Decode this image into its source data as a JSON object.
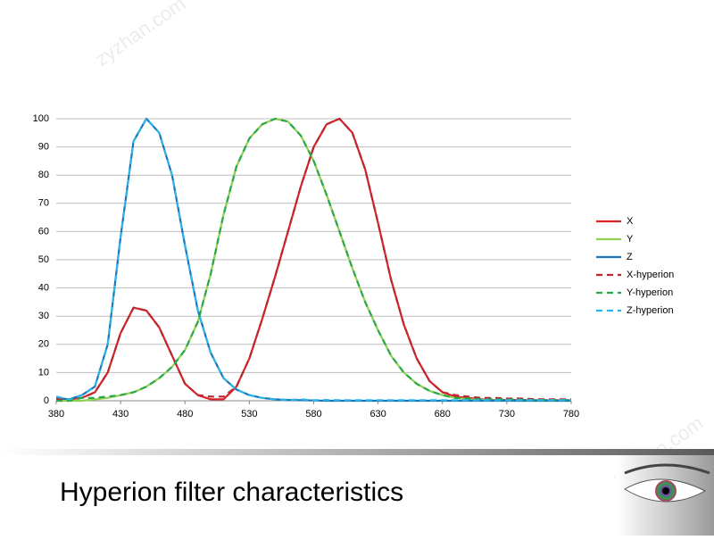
{
  "chart_data": {
    "type": "line",
    "slide_title": "Hyperion filter characteristics",
    "watermarks": [
      "zyzhan.com",
      "zyzhan.com"
    ],
    "x": [
      380,
      390,
      400,
      410,
      420,
      430,
      440,
      450,
      460,
      470,
      480,
      490,
      500,
      510,
      520,
      530,
      540,
      550,
      560,
      570,
      580,
      590,
      600,
      610,
      620,
      630,
      640,
      650,
      660,
      670,
      680,
      690,
      700,
      710,
      720,
      730,
      740,
      750,
      760,
      770,
      780
    ],
    "xlim": [
      380,
      780
    ],
    "xticks": [
      380,
      430,
      480,
      530,
      580,
      630,
      680,
      730,
      780
    ],
    "ylim": [
      0,
      100
    ],
    "yticks": [
      0,
      10,
      20,
      30,
      40,
      50,
      60,
      70,
      80,
      90,
      100
    ],
    "grid": true,
    "legend": "right",
    "series": [
      {
        "name": "X",
        "color": "#d7242b",
        "dash": false,
        "values": [
          0.5,
          0.5,
          1,
          3,
          10,
          24,
          33,
          32,
          26,
          16,
          6,
          2,
          0.5,
          0.5,
          5,
          15,
          29,
          44,
          60,
          76,
          90,
          98,
          100,
          95,
          82,
          63,
          43,
          27,
          15,
          7,
          3,
          1.5,
          1,
          0.5,
          0.3,
          0.3,
          0.3,
          0.2,
          0.2,
          0.2,
          0.2
        ]
      },
      {
        "name": "Y",
        "color": "#8fd14f",
        "dash": false,
        "values": [
          0,
          0,
          0,
          0.5,
          1,
          2,
          3,
          5,
          8,
          12,
          18,
          28,
          45,
          66,
          83,
          93,
          98,
          100,
          99,
          94,
          85,
          73,
          60,
          47,
          35,
          25,
          16,
          10,
          6,
          3.5,
          2,
          1,
          0.5,
          0.3,
          0.2,
          0.1,
          0,
          0,
          0,
          0,
          0
        ]
      },
      {
        "name": "Z",
        "color": "#1f73b7",
        "dash": false,
        "values": [
          1,
          0.5,
          2,
          5,
          20,
          58,
          92,
          100,
          95,
          80,
          55,
          32,
          17,
          8,
          4,
          2,
          1,
          0.5,
          0.3,
          0.2,
          0.1,
          0,
          0,
          0,
          0,
          0,
          0,
          0,
          0,
          0,
          0,
          0,
          0,
          0,
          0,
          0,
          0,
          0,
          0,
          0,
          0
        ]
      },
      {
        "name": "X-hyperion",
        "color": "#b8282e",
        "dash": true,
        "values": [
          0.5,
          0.5,
          1,
          3,
          10,
          24,
          33,
          32,
          26,
          16,
          6,
          2,
          1.5,
          1.5,
          5,
          15,
          29,
          44,
          60,
          76,
          90,
          98,
          100,
          95,
          82,
          63,
          43,
          27,
          15,
          7,
          3,
          2,
          1.5,
          1,
          1,
          0.8,
          0.8,
          0.6,
          0.5,
          0.5,
          0.5
        ]
      },
      {
        "name": "Y-hyperion",
        "color": "#27a84a",
        "dash": true,
        "values": [
          0,
          0,
          1,
          1,
          1.5,
          2,
          3,
          5,
          8,
          12,
          18,
          28,
          45,
          66,
          83,
          93,
          98,
          100,
          99,
          94,
          85,
          73,
          60,
          47,
          35,
          25,
          16,
          10,
          6,
          3.5,
          2,
          1,
          0.8,
          0.5,
          0.5,
          0.5,
          0.4,
          0.3,
          0.3,
          0.3,
          0.3
        ]
      },
      {
        "name": "Z-hyperion",
        "color": "#2cb5e8",
        "dash": true,
        "values": [
          1.5,
          0.5,
          2,
          5,
          20,
          58,
          92,
          100,
          95,
          80,
          55,
          32,
          17,
          8,
          4,
          2,
          1,
          0.5,
          0.3,
          0.5,
          0.2,
          0.3,
          0.2,
          0.2,
          0.2,
          0.2,
          0.2,
          0.2,
          0.2,
          0.2,
          0.2,
          0.2,
          0.2,
          0.2,
          0.2,
          0.2,
          0.2,
          0.2,
          0.2,
          0.2,
          0.2
        ]
      }
    ]
  }
}
